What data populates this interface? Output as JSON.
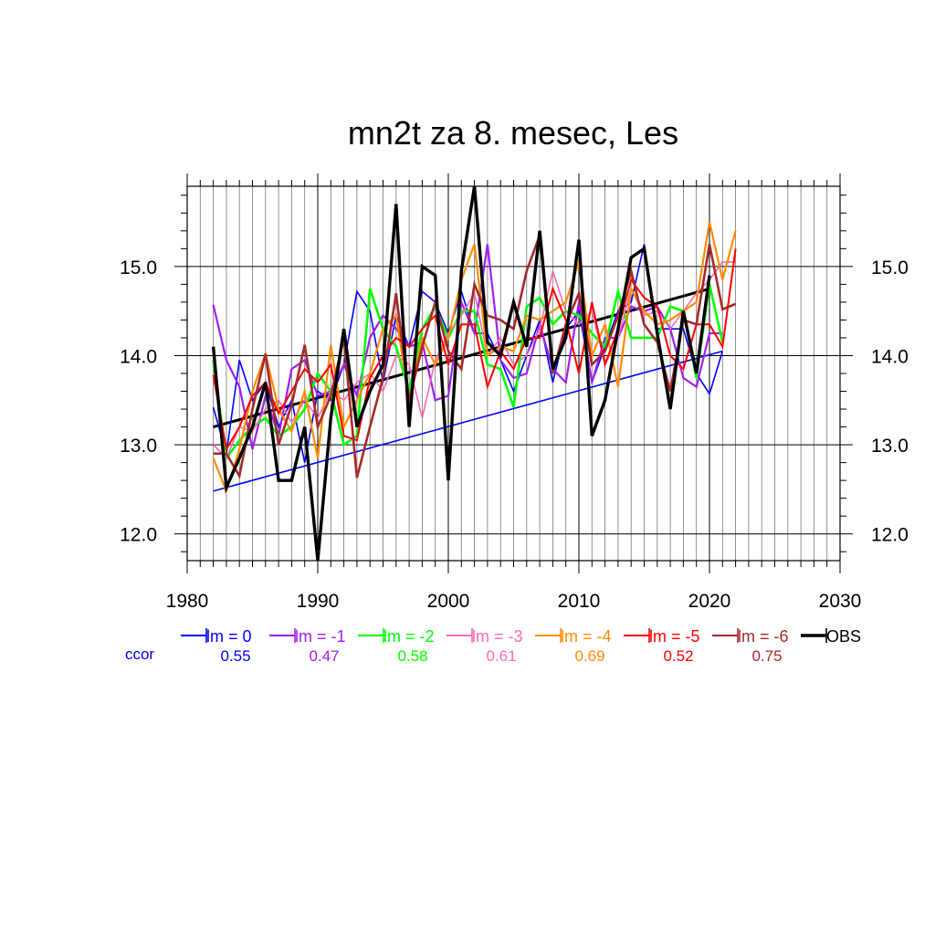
{
  "chart_data": {
    "type": "line",
    "title": "mn2t za 8. mesec, Les",
    "xlabel": "",
    "ylabel": "",
    "xlim": [
      1980,
      2030
    ],
    "ylim": [
      11.7,
      15.9
    ],
    "grid": true,
    "x_ticks": [
      "1980",
      "1990",
      "2000",
      "2010",
      "2020",
      "2030"
    ],
    "y_ticks": [
      "12.0",
      "13.0",
      "14.0",
      "15.0"
    ],
    "x": [
      1982,
      1983,
      1984,
      1985,
      1986,
      1987,
      1988,
      1989,
      1990,
      1991,
      1992,
      1993,
      1994,
      1995,
      1996,
      1997,
      1998,
      1999,
      2000,
      2001,
      2002,
      2003,
      2004,
      2005,
      2006,
      2007,
      2008,
      2009,
      2010,
      2011,
      2012,
      2013,
      2014,
      2015,
      2016,
      2017,
      2018,
      2019,
      2020,
      2021,
      2022
    ],
    "series": [
      {
        "name": "lm = 0",
        "color": "#0000ff",
        "width": 1.6,
        "values": [
          13.42,
          12.9,
          13.95,
          13.5,
          13.7,
          13.2,
          13.5,
          12.8,
          13.6,
          13.5,
          13.9,
          14.72,
          14.5,
          13.7,
          14.45,
          14.1,
          14.72,
          14.6,
          14.25,
          14.72,
          14.25,
          14.25,
          13.95,
          13.6,
          14.0,
          14.4,
          13.7,
          14.3,
          14.5,
          13.7,
          14.1,
          14.5,
          14.6,
          15.25,
          14.3,
          14.3,
          14.3,
          13.8,
          13.57,
          14.05,
          null
        ],
        "trend": [
          12.48,
          14.05
        ]
      },
      {
        "name": "lm = -1",
        "color": "#a020f0",
        "width": 2.2,
        "values": [
          14.57,
          13.95,
          13.65,
          12.95,
          13.55,
          13.1,
          13.85,
          13.95,
          13.55,
          13.6,
          13.9,
          13.55,
          14.2,
          14.45,
          14.3,
          14.1,
          14.15,
          13.5,
          13.55,
          14.6,
          14.25,
          15.25,
          13.95,
          13.75,
          13.8,
          14.35,
          13.85,
          13.7,
          14.6,
          13.7,
          14.2,
          14.2,
          14.55,
          14.5,
          14.55,
          14.3,
          13.75,
          13.65,
          14.25,
          14.25,
          null
        ]
      },
      {
        "name": "lm = -2",
        "color": "#00ff00",
        "width": 2.6,
        "values": [
          13.95,
          12.85,
          13.05,
          13.2,
          13.3,
          13.1,
          13.2,
          13.4,
          13.8,
          13.6,
          13.0,
          13.1,
          14.75,
          14.3,
          14.1,
          13.6,
          14.3,
          14.55,
          14.2,
          14.5,
          14.5,
          13.9,
          13.85,
          13.42,
          14.55,
          14.65,
          14.35,
          14.5,
          14.45,
          14.25,
          14.1,
          14.72,
          14.2,
          14.2,
          14.2,
          14.55,
          14.5,
          13.75,
          14.8,
          14.15,
          null
        ]
      },
      {
        "name": "lm = -3",
        "color": "#ff69b4",
        "width": 1.6,
        "values": [
          13.0,
          12.85,
          13.2,
          13.15,
          13.4,
          13.5,
          13.25,
          13.5,
          13.3,
          13.6,
          13.5,
          13.7,
          13.8,
          13.6,
          14.0,
          13.9,
          13.3,
          13.95,
          14.25,
          14.45,
          14.7,
          14.0,
          14.2,
          13.9,
          14.0,
          14.3,
          14.95,
          14.5,
          14.35,
          14.5,
          13.9,
          14.2,
          14.75,
          14.45,
          14.5,
          14.3,
          14.5,
          14.7,
          14.85,
          15.05,
          15.05
        ]
      },
      {
        "name": "lm = -4",
        "color": "#ff8c00",
        "width": 2.2,
        "values": [
          12.85,
          12.48,
          12.95,
          13.6,
          14.02,
          13.4,
          13.15,
          13.6,
          12.85,
          14.12,
          13.2,
          13.5,
          13.8,
          14.3,
          14.45,
          13.5,
          14.2,
          13.9,
          14.2,
          14.85,
          15.25,
          14.0,
          14.1,
          14.05,
          14.45,
          14.4,
          14.5,
          14.6,
          15.05,
          14.0,
          14.35,
          13.65,
          14.75,
          14.5,
          14.35,
          14.4,
          14.5,
          14.6,
          15.5,
          14.85,
          15.4
        ]
      },
      {
        "name": "lm = -5",
        "color": "#ff0000",
        "width": 2.0,
        "values": [
          13.78,
          12.95,
          13.2,
          13.55,
          13.7,
          13.35,
          13.6,
          13.85,
          13.7,
          13.9,
          13.1,
          13.05,
          13.75,
          14.0,
          14.2,
          14.1,
          14.3,
          14.45,
          13.9,
          14.35,
          14.35,
          13.65,
          14.05,
          13.85,
          14.2,
          14.2,
          14.75,
          14.4,
          13.8,
          14.6,
          13.9,
          14.3,
          14.85,
          14.65,
          14.55,
          14.0,
          13.85,
          14.35,
          14.35,
          14.1,
          15.2
        ]
      },
      {
        "name": "lm = -6",
        "color": "#a52a2a",
        "width": 2.6,
        "values": [
          12.9,
          12.9,
          12.65,
          13.4,
          14.02,
          13.0,
          13.45,
          14.12,
          13.2,
          13.55,
          14.2,
          12.63,
          13.2,
          13.75,
          14.7,
          13.5,
          14.1,
          14.6,
          14.05,
          13.85,
          14.8,
          14.45,
          14.4,
          14.3,
          14.95,
          15.35,
          13.8,
          14.35,
          14.7,
          13.9,
          14.05,
          14.45,
          14.95,
          14.35,
          14.15,
          13.6,
          14.4,
          14.35,
          15.25,
          14.52,
          14.58
        ]
      },
      {
        "name": "OBS",
        "color": "#000000",
        "width": 3.4,
        "values": [
          14.1,
          12.52,
          12.85,
          13.2,
          13.7,
          12.6,
          12.6,
          13.2,
          11.7,
          13.3,
          14.3,
          13.2,
          13.6,
          13.9,
          15.7,
          13.2,
          15.0,
          14.9,
          12.6,
          14.95,
          15.9,
          14.15,
          14.0,
          14.6,
          14.1,
          15.4,
          13.85,
          14.2,
          15.3,
          13.1,
          13.5,
          14.3,
          15.1,
          15.2,
          14.25,
          13.4,
          14.5,
          13.8,
          14.9,
          null,
          null
        ],
        "trend": [
          13.2,
          14.75
        ]
      }
    ],
    "ccor": {
      "label": "ccor",
      "values": [
        "0.55",
        "0.47",
        "0.58",
        "0.61",
        "0.69",
        "0.52",
        "0.75"
      ]
    }
  }
}
